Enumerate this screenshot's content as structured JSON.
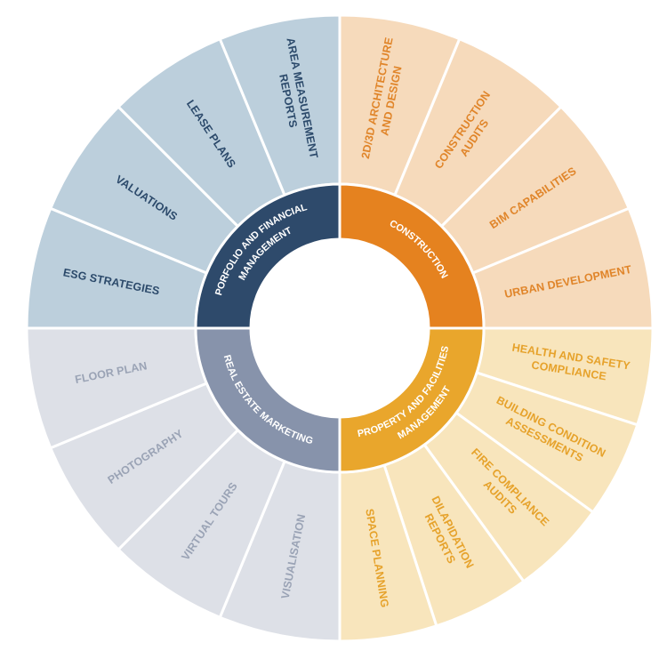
{
  "quadrants": [
    {
      "title": [
        "PORFOLIO AND FINANCIAL",
        "MANAGEMENT"
      ],
      "segments": [
        {
          "lines": [
            "ESG STRATEGIES"
          ]
        },
        {
          "lines": [
            "VALUATIONS"
          ]
        },
        {
          "lines": [
            "LEASE PLANS"
          ]
        },
        {
          "lines": [
            "AREA MEASUREMENT",
            "REPORTS"
          ]
        }
      ]
    },
    {
      "title": [
        "CONSTRUCTION"
      ],
      "segments": [
        {
          "lines": [
            "2D/3D ARCHITECTURE",
            "AND DESIGN"
          ]
        },
        {
          "lines": [
            "CONSTRUCTION",
            "AUDITS"
          ]
        },
        {
          "lines": [
            "BIM CAPABILITIES"
          ]
        },
        {
          "lines": [
            "URBAN DEVELOPMENT"
          ]
        }
      ]
    },
    {
      "title": [
        "PROPERTY AND FACILITIES",
        "MANAGEMENT"
      ],
      "segments": [
        {
          "lines": [
            "HEALTH AND SAFETY",
            "COMPLIANCE"
          ]
        },
        {
          "lines": [
            "BUILDING CONDITION",
            "ASSESSMENTS"
          ]
        },
        {
          "lines": [
            "FIRE COMPLIANCE",
            "AUDITS"
          ]
        },
        {
          "lines": [
            "DILAPIDATION",
            "REPORTS"
          ]
        },
        {
          "lines": [
            "SPACE PLANNING"
          ]
        }
      ]
    },
    {
      "title": [
        "REAL ESTATE MARKETING"
      ],
      "segments": [
        {
          "lines": [
            "VISUALISATION"
          ]
        },
        {
          "lines": [
            "VIRTUAL TOURS"
          ]
        },
        {
          "lines": [
            "PHOTOGRAPHY"
          ]
        },
        {
          "lines": [
            "FLOOR PLAN"
          ]
        }
      ]
    }
  ]
}
